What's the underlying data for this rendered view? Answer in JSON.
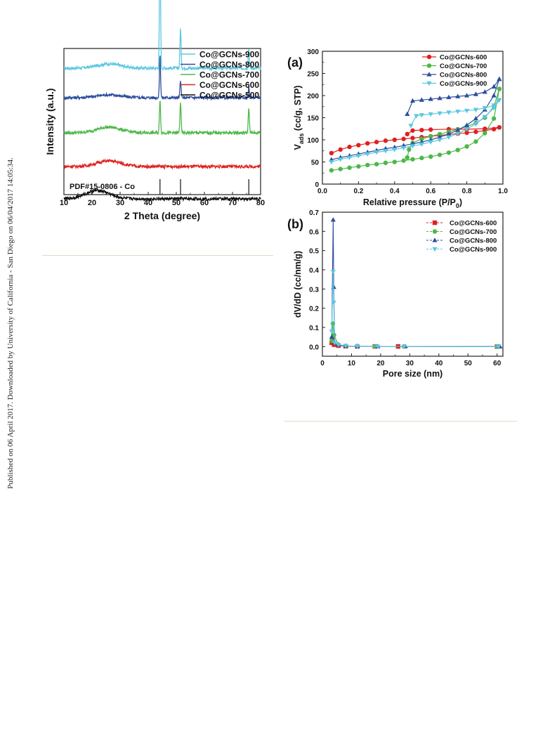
{
  "sidebar": {
    "text": "Published on 06 April 2017. Downloaded by University of California - San Diego on 06/04/2017 14:05:34."
  },
  "chart_data": [
    {
      "type": "line",
      "panel_label": "",
      "xlabel": "2 Theta (degree)",
      "ylabel": "Intensity (a.u.)",
      "xlim": [
        10,
        80
      ],
      "x_ticks": [
        10,
        20,
        30,
        40,
        50,
        60,
        70,
        80
      ],
      "y_ticks_shown": false,
      "legend_position": "top-right",
      "reference_label": "PDF#15-0806 - Co",
      "reference_lines": [
        44.2,
        51.5,
        75.8
      ],
      "series": [
        {
          "name": "Co@GCNs-900",
          "color": "#5bc8e0",
          "baseline": 0.84,
          "hump_at": 26,
          "hump": 0.03,
          "peaks": [
            [
              44.2,
              0.9
            ],
            [
              51.5,
              0.28
            ],
            [
              75.8,
              0.14
            ]
          ]
        },
        {
          "name": "Co@GCNs-800",
          "color": "#2e4d9e",
          "baseline": 0.63,
          "hump_at": 26,
          "hump": 0.02,
          "peaks": [
            [
              44.2,
              0.3
            ],
            [
              51.5,
              0.12
            ],
            [
              75.8,
              0.07
            ]
          ]
        },
        {
          "name": "Co@GCNs-700",
          "color": "#4cb848",
          "baseline": 0.38,
          "hump_at": 26,
          "hump": 0.04,
          "peaks": [
            [
              44.2,
              0.24
            ],
            [
              51.5,
              0.22
            ],
            [
              75.8,
              0.18
            ]
          ]
        },
        {
          "name": "Co@GCNs-600",
          "color": "#e02020",
          "baseline": 0.14,
          "hump_at": 26,
          "hump": 0.04,
          "peaks": []
        },
        {
          "name": "Co@GCNs-500",
          "color": "#111111",
          "baseline": -0.09,
          "hump_at": 22,
          "hump": 0.06,
          "peaks": []
        }
      ]
    },
    {
      "type": "line",
      "panel_label": "(a)",
      "xlabel": "Relative pressure (P/P",
      "xlabel_sub": "0",
      "xlabel_end": ")",
      "ylabel": "V",
      "ylabel_sub": "ads",
      "ylabel_end": " (cc/g, STP)",
      "xlim": [
        0,
        1
      ],
      "ylim": [
        0,
        300
      ],
      "x_ticks": [
        "0.0",
        "0.2",
        "0.4",
        "0.6",
        "0.8",
        "1.0"
      ],
      "y_ticks": [
        "0",
        "50",
        "100",
        "150",
        "200",
        "250",
        "300"
      ],
      "legend_position": "top-right",
      "series": [
        {
          "name": "Co@GCNs-600",
          "color": "#e02020",
          "marker": "circle",
          "adsorption": [
            [
              0.05,
              70
            ],
            [
              0.1,
              78
            ],
            [
              0.15,
              84
            ],
            [
              0.2,
              88
            ],
            [
              0.25,
              92
            ],
            [
              0.3,
              95
            ],
            [
              0.35,
              98
            ],
            [
              0.4,
              100
            ],
            [
              0.45,
              102
            ],
            [
              0.5,
              104
            ],
            [
              0.55,
              106
            ],
            [
              0.6,
              108
            ],
            [
              0.65,
              110
            ],
            [
              0.7,
              112
            ],
            [
              0.75,
              114
            ],
            [
              0.8,
              116
            ],
            [
              0.85,
              118
            ],
            [
              0.9,
              121
            ],
            [
              0.95,
              124
            ],
            [
              0.98,
              128
            ]
          ],
          "desorption": [
            [
              0.98,
              128
            ],
            [
              0.9,
              125
            ],
            [
              0.8,
              124
            ],
            [
              0.7,
              124
            ],
            [
              0.6,
              123
            ],
            [
              0.55,
              122
            ],
            [
              0.5,
              121
            ],
            [
              0.47,
              113
            ]
          ]
        },
        {
          "name": "Co@GCNs-700",
          "color": "#4cb848",
          "marker": "circle",
          "adsorption": [
            [
              0.05,
              31
            ],
            [
              0.1,
              34
            ],
            [
              0.15,
              37
            ],
            [
              0.2,
              40
            ],
            [
              0.25,
              43
            ],
            [
              0.3,
              45
            ],
            [
              0.35,
              48
            ],
            [
              0.4,
              50
            ],
            [
              0.45,
              53
            ],
            [
              0.5,
              56
            ],
            [
              0.55,
              59
            ],
            [
              0.6,
              62
            ],
            [
              0.65,
              66
            ],
            [
              0.7,
              71
            ],
            [
              0.75,
              77
            ],
            [
              0.8,
              85
            ],
            [
              0.85,
              96
            ],
            [
              0.9,
              115
            ],
            [
              0.95,
              148
            ],
            [
              0.98,
              215
            ]
          ],
          "desorption": [
            [
              0.98,
              215
            ],
            [
              0.95,
              175
            ],
            [
              0.9,
              150
            ],
            [
              0.85,
              138
            ],
            [
              0.8,
              130
            ],
            [
              0.75,
              124
            ],
            [
              0.7,
              118
            ],
            [
              0.65,
              113
            ],
            [
              0.6,
              108
            ],
            [
              0.55,
              102
            ],
            [
              0.5,
              93
            ],
            [
              0.48,
              78
            ],
            [
              0.47,
              60
            ]
          ]
        },
        {
          "name": "Co@GCNs-800",
          "color": "#2e4d9e",
          "marker": "triangle",
          "adsorption": [
            [
              0.05,
              55
            ],
            [
              0.1,
              60
            ],
            [
              0.15,
              64
            ],
            [
              0.2,
              68
            ],
            [
              0.25,
              72
            ],
            [
              0.3,
              76
            ],
            [
              0.35,
              80
            ],
            [
              0.4,
              83
            ],
            [
              0.45,
              87
            ],
            [
              0.5,
              91
            ],
            [
              0.55,
              95
            ],
            [
              0.6,
              100
            ],
            [
              0.65,
              106
            ],
            [
              0.7,
              113
            ],
            [
              0.75,
              122
            ],
            [
              0.8,
              133
            ],
            [
              0.85,
              148
            ],
            [
              0.9,
              168
            ],
            [
              0.95,
              200
            ],
            [
              0.98,
              237
            ]
          ],
          "desorption": [
            [
              0.98,
              237
            ],
            [
              0.95,
              220
            ],
            [
              0.9,
              208
            ],
            [
              0.85,
              203
            ],
            [
              0.8,
              200
            ],
            [
              0.75,
              198
            ],
            [
              0.7,
              196
            ],
            [
              0.65,
              194
            ],
            [
              0.6,
              192
            ],
            [
              0.55,
              190
            ],
            [
              0.5,
              188
            ],
            [
              0.47,
              158
            ]
          ]
        },
        {
          "name": "Co@GCNs-900",
          "color": "#5bc8e0",
          "marker": "triangle-down",
          "adsorption": [
            [
              0.05,
              50
            ],
            [
              0.1,
              56
            ],
            [
              0.15,
              60
            ],
            [
              0.2,
              64
            ],
            [
              0.25,
              68
            ],
            [
              0.3,
              72
            ],
            [
              0.35,
              75
            ],
            [
              0.4,
              78
            ],
            [
              0.45,
              82
            ],
            [
              0.5,
              86
            ],
            [
              0.55,
              90
            ],
            [
              0.6,
              95
            ],
            [
              0.65,
              100
            ],
            [
              0.7,
              106
            ],
            [
              0.75,
              114
            ],
            [
              0.8,
              124
            ],
            [
              0.85,
              136
            ],
            [
              0.9,
              152
            ],
            [
              0.95,
              172
            ],
            [
              0.98,
              190
            ]
          ],
          "desorption": [
            [
              0.98,
              190
            ],
            [
              0.95,
              178
            ],
            [
              0.9,
              172
            ],
            [
              0.85,
              168
            ],
            [
              0.8,
              166
            ],
            [
              0.75,
              164
            ],
            [
              0.7,
              162
            ],
            [
              0.65,
              160
            ],
            [
              0.6,
              158
            ],
            [
              0.55,
              156
            ],
            [
              0.52,
              154
            ],
            [
              0.49,
              132
            ]
          ]
        }
      ]
    },
    {
      "type": "line",
      "panel_label": "(b)",
      "xlabel": "Pore size (nm)",
      "ylabel": "dV/dD (cc/nm/g)",
      "xlim": [
        0,
        62
      ],
      "ylim": [
        -0.05,
        0.7
      ],
      "x_ticks": [
        "0",
        "10",
        "20",
        "30",
        "40",
        "50",
        "60"
      ],
      "y_ticks": [
        "0.0",
        "0.1",
        "0.2",
        "0.3",
        "0.4",
        "0.5",
        "0.6",
        "0.7"
      ],
      "legend_position": "top-right",
      "series": [
        {
          "name": "Co@GCNs-600",
          "color": "#e02020",
          "marker": "square",
          "points": [
            [
              3.2,
              0.02
            ],
            [
              3.6,
              0.04
            ],
            [
              4.0,
              0.01
            ],
            [
              5.5,
              0.005
            ],
            [
              8,
              0.002
            ],
            [
              12,
              0.001
            ],
            [
              18,
              0.001
            ],
            [
              26,
              0.001
            ],
            [
              60,
              0.0
            ]
          ]
        },
        {
          "name": "Co@GCNs-700",
          "color": "#4cb848",
          "marker": "circle",
          "points": [
            [
              3.2,
              0.03
            ],
            [
              3.6,
              0.12
            ],
            [
              4.0,
              0.06
            ],
            [
              5.5,
              0.01
            ],
            [
              8,
              0.003
            ],
            [
              12,
              0.002
            ],
            [
              18,
              0.001
            ],
            [
              28,
              0.001
            ],
            [
              60,
              0.0
            ]
          ]
        },
        {
          "name": "Co@GCNs-800",
          "color": "#2e4d9e",
          "marker": "triangle",
          "points": [
            [
              3.2,
              0.05
            ],
            [
              3.7,
              0.66
            ],
            [
              3.9,
              0.31
            ],
            [
              4.2,
              0.02
            ],
            [
              5.5,
              0.01
            ],
            [
              8,
              0.004
            ],
            [
              12,
              0.002
            ],
            [
              19,
              0.001
            ],
            [
              28.5,
              0.001
            ],
            [
              61,
              0.0
            ]
          ]
        },
        {
          "name": "Co@GCNs-900",
          "color": "#5bc8e0",
          "marker": "triangle-down",
          "points": [
            [
              3.2,
              0.08
            ],
            [
              3.7,
              0.39
            ],
            [
              3.9,
              0.23
            ],
            [
              4.2,
              0.02
            ],
            [
              5.5,
              0.01
            ],
            [
              8,
              0.004
            ],
            [
              12,
              0.002
            ],
            [
              19,
              0.001
            ],
            [
              28,
              0.001
            ],
            [
              60.5,
              0.0
            ]
          ]
        }
      ]
    }
  ]
}
